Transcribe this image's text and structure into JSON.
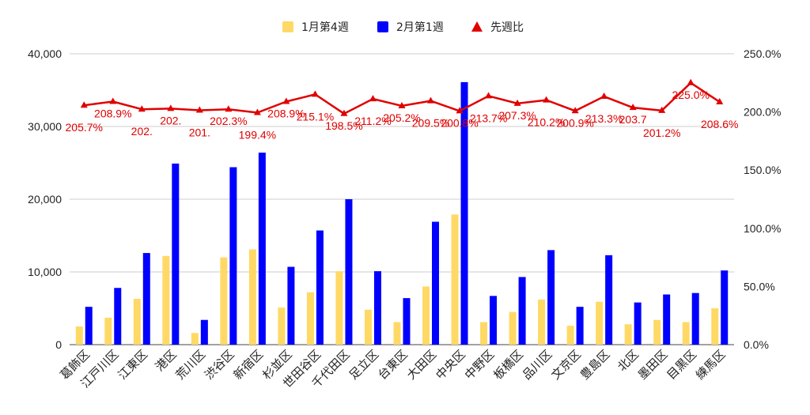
{
  "chart_data": {
    "type": "bar",
    "categories": [
      "葛飾区",
      "江戸川区",
      "江東区",
      "港区",
      "荒川区",
      "渋谷区",
      "新宿区",
      "杉並区",
      "世田谷区",
      "千代田区",
      "足立区",
      "台東区",
      "大田区",
      "中央区",
      "中野区",
      "板橋区",
      "品川区",
      "文京区",
      "豊島区",
      "北区",
      "墨田区",
      "目黒区",
      "練馬区"
    ],
    "series": [
      {
        "name": "1月第4週",
        "type": "bar",
        "axis": "left",
        "color": "#ffd966",
        "values": [
          2500,
          3700,
          6300,
          12200,
          1600,
          12000,
          13100,
          5100,
          7200,
          10100,
          4800,
          3100,
          8000,
          17900,
          3100,
          4500,
          6200,
          2600,
          5900,
          2800,
          3400,
          3100,
          5000
        ]
      },
      {
        "name": "2月第1週",
        "type": "bar",
        "axis": "left",
        "color": "#0000ff",
        "values": [
          5200,
          7800,
          12600,
          24900,
          3400,
          24400,
          26400,
          10700,
          15700,
          20000,
          10100,
          6400,
          16900,
          36100,
          6700,
          9300,
          13000,
          5200,
          12300,
          5800,
          6900,
          7100,
          10200
        ]
      },
      {
        "name": "先週比",
        "type": "line",
        "axis": "right",
        "color": "#e00000",
        "values": [
          205.7,
          208.9,
          202.3,
          202.9,
          201.4,
          202.3,
          199.4,
          208.9,
          215.1,
          198.5,
          211.2,
          205.2,
          209.5,
          200.8,
          213.7,
          207.3,
          210.2,
          200.9,
          213.3,
          203.7,
          201.2,
          225.0,
          208.6
        ]
      }
    ],
    "data_labels": [
      "205.7%",
      "208.9%",
      "202.",
      "202.",
      "201.",
      "202.3%",
      "199.4%",
      "208.9%",
      "215.1%",
      "198.5%",
      "211.2%",
      "205.2%",
      "209.5%",
      "200.8%",
      "213.7%",
      "207.3%",
      "210.2%",
      "200.9%",
      "213.3%",
      "203.7",
      "201.2%",
      "225.0%",
      "208.6%"
    ],
    "yleft": {
      "ylim": [
        0,
        40000
      ],
      "ticks": [
        "0",
        "10,000",
        "20,000",
        "30,000",
        "40,000"
      ],
      "tick_values": [
        0,
        10000,
        20000,
        30000,
        40000
      ]
    },
    "yright": {
      "ylim": [
        0,
        250
      ],
      "ticks": [
        "0.0%",
        "50.0%",
        "100.0%",
        "150.0%",
        "200.0%",
        "250.0%"
      ],
      "tick_values": [
        0,
        50,
        100,
        150,
        200,
        250
      ]
    },
    "legend": {
      "position": "top",
      "items": [
        "1月第4週",
        "2月第1週",
        "先週比"
      ]
    },
    "grid": true
  }
}
